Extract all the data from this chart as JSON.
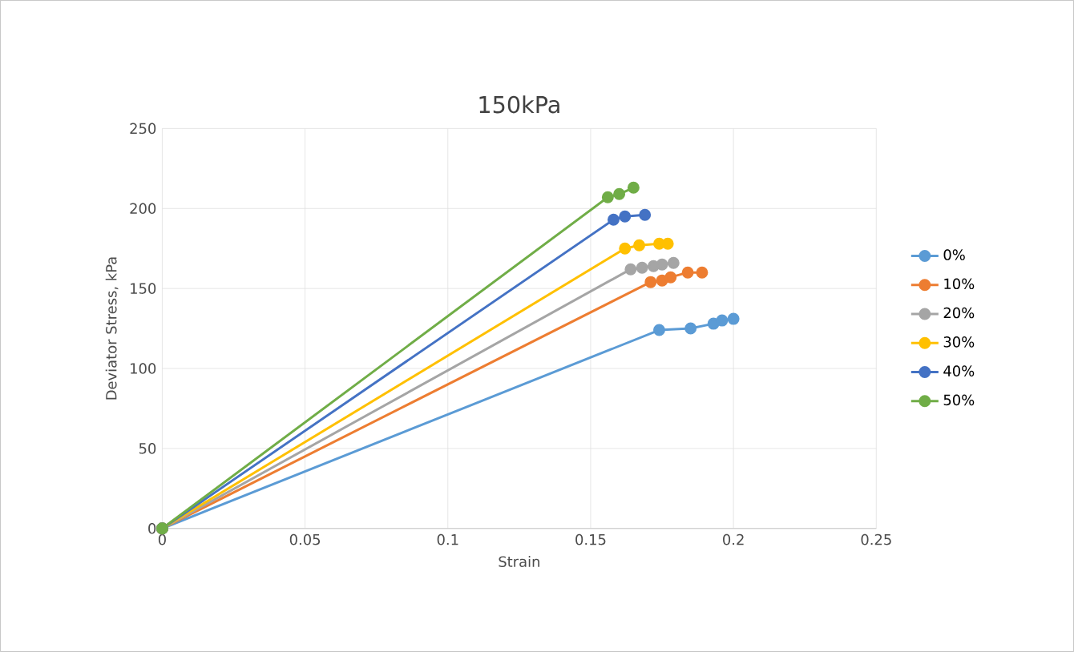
{
  "chart_data": {
    "type": "line",
    "title": "150kPa",
    "xlabel": "Strain",
    "ylabel": "Deviator Stress, kPa",
    "xlim": [
      0,
      0.25
    ],
    "xticks": [
      0,
      0.05,
      0.1,
      0.15,
      0.2,
      0.25
    ],
    "ylim": [
      0,
      250
    ],
    "yticks": [
      0,
      50,
      100,
      150,
      200,
      250
    ],
    "grid": true,
    "legend": "right",
    "marker": "circle",
    "line_style": "solid",
    "series": [
      {
        "name": "0%",
        "color": "#5b9bd5",
        "x": [
          0,
          0.174,
          0.185,
          0.193,
          0.196,
          0.2
        ],
        "values": [
          0,
          124,
          125,
          128,
          130,
          131
        ]
      },
      {
        "name": "10%",
        "color": "#ed7d31",
        "x": [
          0,
          0.171,
          0.175,
          0.178,
          0.184,
          0.189
        ],
        "values": [
          0,
          154,
          155,
          157,
          160,
          160
        ]
      },
      {
        "name": "20%",
        "color": "#a5a5a5",
        "x": [
          0,
          0.164,
          0.168,
          0.172,
          0.175,
          0.179
        ],
        "values": [
          0,
          162,
          163,
          164,
          165,
          166
        ]
      },
      {
        "name": "30%",
        "color": "#ffc000",
        "x": [
          0,
          0.162,
          0.167,
          0.174,
          0.177
        ],
        "values": [
          0,
          175,
          177,
          178,
          178
        ]
      },
      {
        "name": "40%",
        "color": "#4472c4",
        "x": [
          0,
          0.158,
          0.162,
          0.169
        ],
        "values": [
          0,
          193,
          195,
          196
        ]
      },
      {
        "name": "50%",
        "color": "#70ad47",
        "x": [
          0,
          0.156,
          0.16,
          0.163,
          0.165
        ],
        "values": [
          0,
          207,
          209,
          null,
          213
        ]
      }
    ]
  }
}
